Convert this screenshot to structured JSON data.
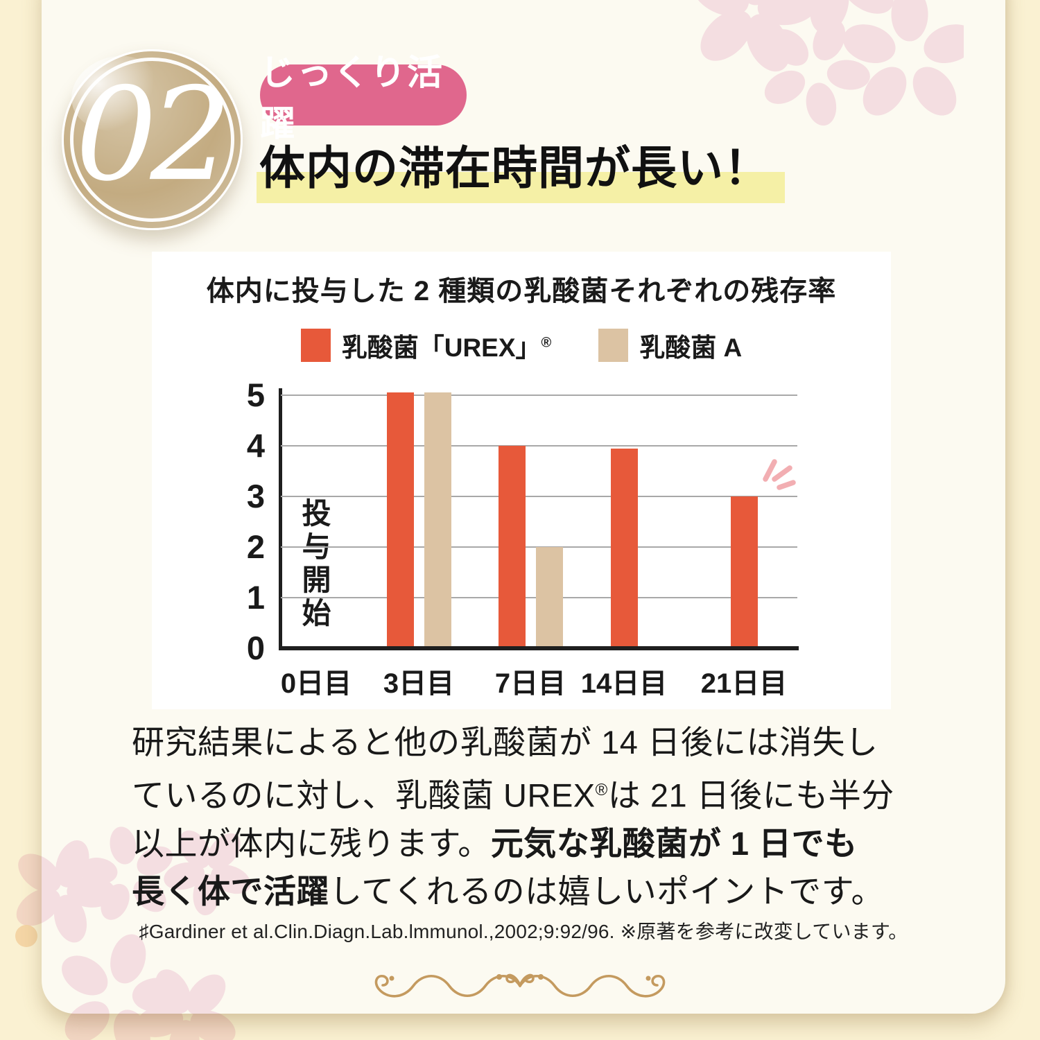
{
  "badge": {
    "number": "02"
  },
  "header": {
    "tag": "じっくり活躍",
    "title": "体内の滞在時間が長い！"
  },
  "chart_data": {
    "type": "bar",
    "title": "体内に投与した 2 種類の乳酸菌それぞれの残存率",
    "categories": [
      "0日目",
      "3日目",
      "7日目",
      "14日目",
      "21日目"
    ],
    "series": [
      {
        "name": "乳酸菌「UREX」",
        "name_sup": "®",
        "color": "#e7593a",
        "values": [
          null,
          5.05,
          4.0,
          3.95,
          3.0
        ]
      },
      {
        "name": "乳酸菌 A",
        "name_sup": "",
        "color": "#dcc3a3",
        "values": [
          null,
          5.05,
          2.0,
          null,
          null
        ]
      }
    ],
    "ylim": [
      0,
      5
    ],
    "yticks": [
      0,
      1,
      2,
      3,
      4,
      5
    ],
    "grid": true,
    "legend_position": "top",
    "annotation": "投与開始"
  },
  "paragraph": {
    "lines": [
      [
        {
          "t": "研究結果によると他の乳酸菌が 14 日後には消失し",
          "b": false
        }
      ],
      [
        {
          "t": "ているのに対し、乳酸菌 UREX",
          "b": false
        },
        {
          "t": "®",
          "b": false,
          "sup": true
        },
        {
          "t": "は 21 日後にも半分",
          "b": false
        }
      ],
      [
        {
          "t": "以上が体内に残ります。",
          "b": false
        },
        {
          "t": "元気な乳酸菌が 1 日でも",
          "b": true
        }
      ],
      [
        {
          "t": "長く体で活躍",
          "b": true
        },
        {
          "t": "してくれるのは嬉しいポイントです。",
          "b": false
        }
      ]
    ]
  },
  "citation": "♯Gardiner et al.Clin.Diagn.Lab.lmmunol.,2002;9:92/96. ※原著を参考に改変しています。",
  "colors": {
    "background": "#faf1d2",
    "card": "#fcfaf1",
    "orange": "#e7593a",
    "beige": "#dcc3a3",
    "pill": "#e0678d",
    "highlight": "#f5f0a6",
    "flower": "#f7e3ee",
    "flourish": "#c49a5f",
    "emphasis": "#f2aeb2",
    "gold": "#c3ab81"
  }
}
